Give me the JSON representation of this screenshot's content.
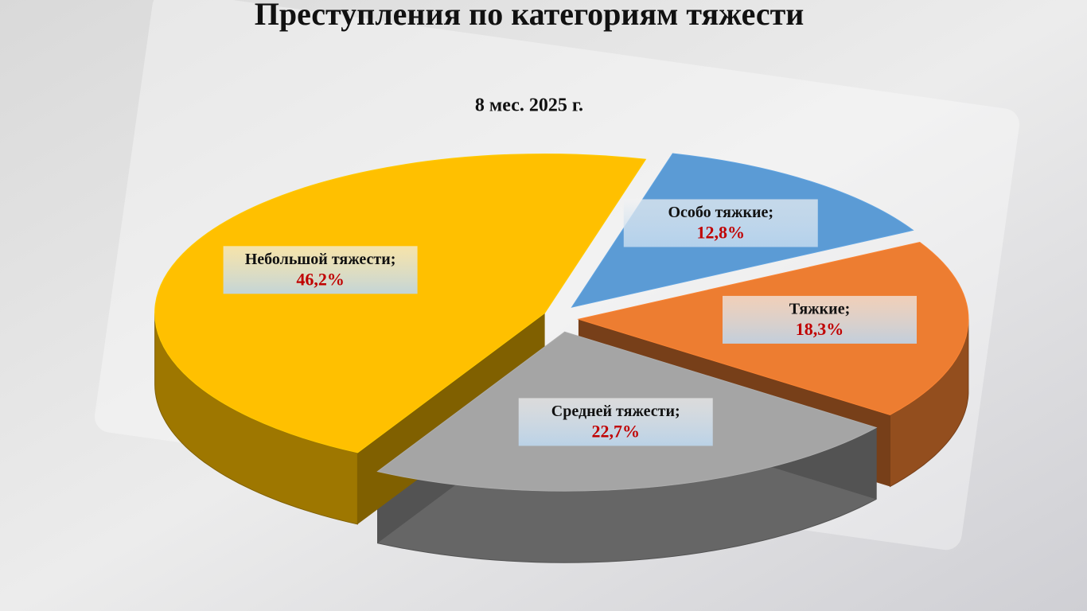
{
  "chart_data": {
    "type": "pie",
    "title": "Преступления по категориям тяжести",
    "subtitle": "8 мес. 2025 г.",
    "categories": [
      "Особо тяжкие;",
      "Тяжкие;",
      "Средней тяжести;",
      "Небольшой тяжести;"
    ],
    "values": [
      12.8,
      18.3,
      22.7,
      46.2
    ],
    "value_labels": [
      "12,8%",
      "18,3%",
      "22,7%",
      "46,2%"
    ],
    "colors": [
      "#5b9bd5",
      "#ed7d31",
      "#a5a5a5",
      "#ffc000"
    ]
  }
}
